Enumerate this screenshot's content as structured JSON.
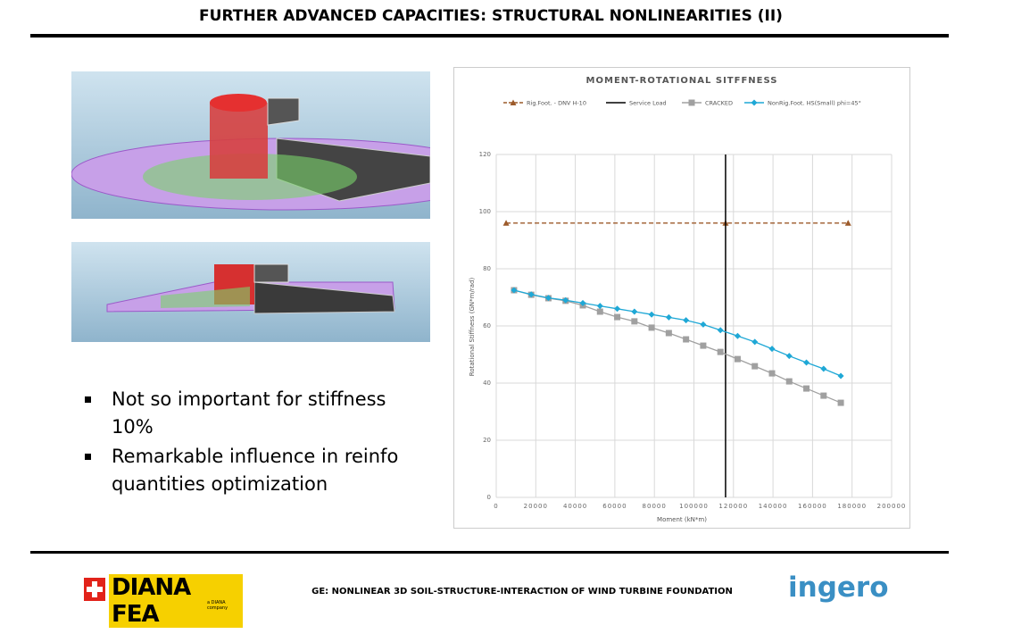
{
  "header": {
    "title": "FURTHER ADVANCED CAPACITIES: STRUCTURAL NONLINEARITIES (II)"
  },
  "bullets": [
    "Not so important for stiffness 10%",
    "Remarkable influence in reinfo quantities optimization"
  ],
  "footer": {
    "left_logo": "DIANA FEA",
    "left_logo_sub": "a DIANA company",
    "center": "GE: NONLINEAR 3D SOIL-STRUCTURE-INTERACTION OF WIND TURBINE FOUNDATION",
    "right_logo": "ingero"
  },
  "chart_data": {
    "type": "line",
    "title": "MOMENT-ROTATIONAL SITFFNESS",
    "x_label": "Moment (kN*m)",
    "y_label": "Rotational Stiffness (GN*m/rad)",
    "xlim": [
      0,
      200000
    ],
    "xticks": [
      0,
      20000,
      40000,
      60000,
      80000,
      100000,
      120000,
      140000,
      160000,
      180000,
      200000
    ],
    "ylim": [
      0,
      120
    ],
    "yticks": [
      0,
      20,
      40,
      60,
      80,
      100,
      120
    ],
    "grid": true,
    "legend": "top",
    "series": [
      {
        "name": "Rig.Foot. - DNV H-10",
        "color": "#9c5a2a",
        "dash": true,
        "marker": "triangle",
        "x": [
          5000,
          116000,
          178000
        ],
        "values": [
          96,
          96,
          96
        ]
      },
      {
        "name": "Service Load",
        "color": "#000000",
        "dash": false,
        "marker": "none",
        "x": [
          116000,
          116000
        ],
        "values": [
          0,
          120
        ]
      },
      {
        "name": "CRACKED",
        "color": "#a0a0a0",
        "dash": false,
        "marker": "square",
        "x": [
          9000,
          17700,
          26400,
          35100,
          43800,
          52500,
          61200,
          69900,
          78600,
          87300,
          96000,
          104700,
          113400,
          122100,
          130800,
          139500,
          148200,
          156900,
          165600,
          174300
        ],
        "values": [
          72.5,
          70.9,
          69.7,
          68.8,
          67.2,
          65,
          63.1,
          61.6,
          59.4,
          57.5,
          55.3,
          53.1,
          50.9,
          48.4,
          45.9,
          43.4,
          40.6,
          38.1,
          35.6,
          33.1
        ]
      },
      {
        "name": "NonRig.Foot. HS(Small) phi=45°",
        "color": "#1fa8d6",
        "dash": false,
        "marker": "diamond",
        "x": [
          9000,
          17700,
          26400,
          35100,
          43800,
          52500,
          61200,
          69900,
          78600,
          87300,
          96000,
          104700,
          113400,
          122100,
          130800,
          139500,
          148200,
          156900,
          165600,
          174300
        ],
        "values": [
          72.5,
          71,
          69.8,
          69,
          68,
          67,
          66,
          65,
          64,
          63,
          62,
          60.5,
          58.5,
          56.5,
          54.4,
          52,
          49.5,
          47.2,
          45,
          42.5
        ]
      }
    ]
  }
}
